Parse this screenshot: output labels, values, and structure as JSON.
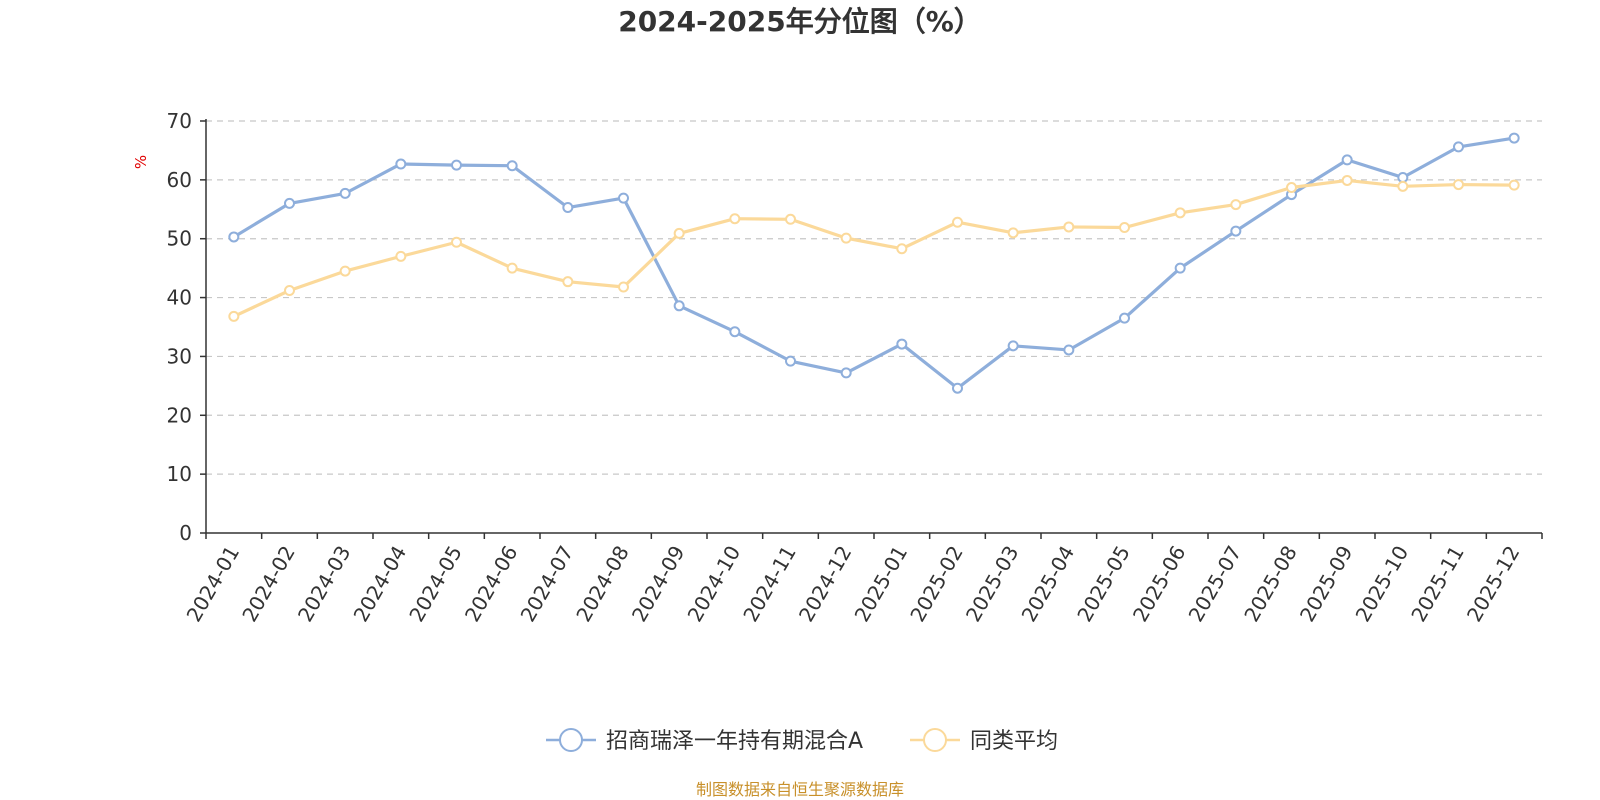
{
  "chart_data": {
    "type": "line",
    "title": "2024-2025年分位图（%）",
    "ylabel": "%",
    "ylim": [
      0,
      70
    ],
    "yticks": [
      0,
      10,
      20,
      30,
      40,
      50,
      60,
      70
    ],
    "grid": true,
    "legend_position": "bottom-center",
    "categories": [
      "2024-01",
      "2024-02",
      "2024-03",
      "2024-04",
      "2024-05",
      "2024-06",
      "2024-07",
      "2024-08",
      "2024-09",
      "2024-10",
      "2024-11",
      "2024-12",
      "2025-01",
      "2025-02",
      "2025-03",
      "2025-04",
      "2025-05",
      "2025-06",
      "2025-07",
      "2025-08",
      "2025-09",
      "2025-10",
      "2025-11",
      "2025-12"
    ],
    "series": [
      {
        "name": "招商瑞泽一年持有期混合A",
        "color": "#8eaedb",
        "values": [
          50.3,
          56.0,
          57.7,
          62.7,
          62.5,
          62.4,
          55.3,
          56.9,
          38.6,
          34.2,
          29.2,
          27.2,
          32.1,
          24.6,
          31.8,
          31.1,
          36.5,
          45.0,
          51.3,
          57.5,
          63.4,
          60.4,
          65.6,
          67.1
        ]
      },
      {
        "name": "同类平均",
        "color": "#fbd99a",
        "values": [
          36.8,
          41.2,
          44.5,
          47.0,
          49.4,
          45.0,
          42.7,
          41.8,
          50.9,
          53.4,
          53.3,
          50.1,
          48.3,
          52.8,
          51.0,
          52.0,
          51.9,
          54.4,
          55.8,
          58.7,
          59.9,
          58.9,
          59.2,
          59.1
        ]
      }
    ],
    "source_text": "制图数据来自恒生聚源数据库"
  }
}
